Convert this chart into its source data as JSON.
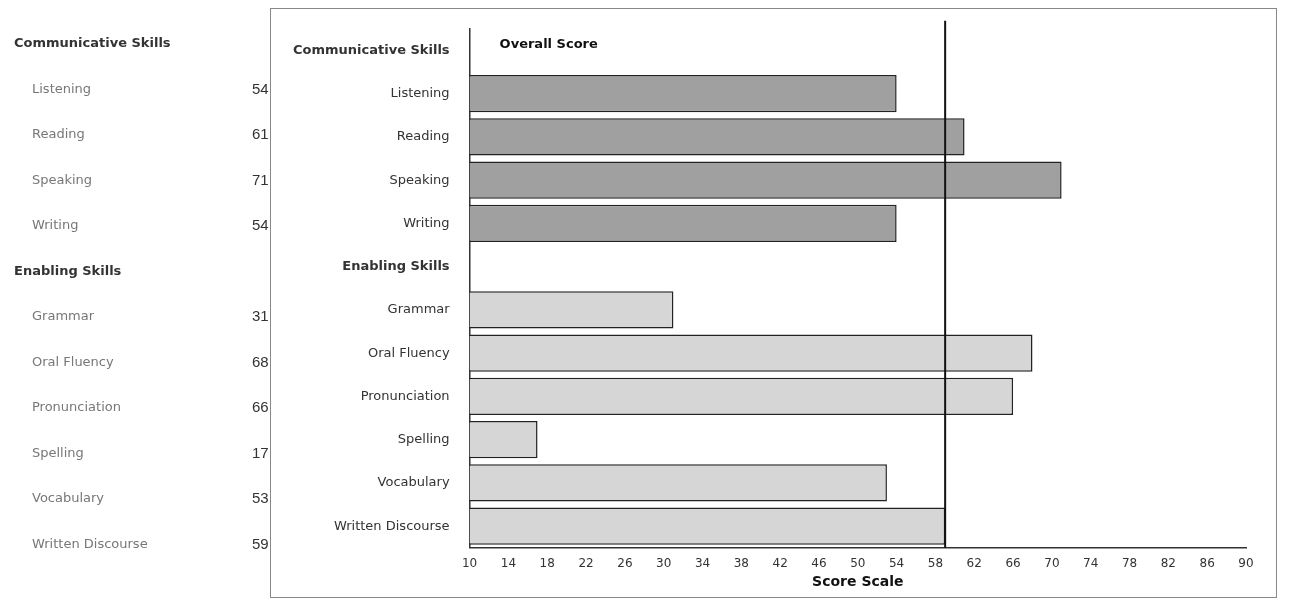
{
  "chart_data": {
    "type": "bar",
    "orientation": "horizontal",
    "xlabel": "Score Scale",
    "categories": [
      "Communicative Skills",
      "Listening",
      "Reading",
      "Speaking",
      "Writing",
      "Enabling Skills",
      "Grammar",
      "Oral Fluency",
      "Pronunciation",
      "Spelling",
      "Vocabulary",
      "Written Discourse"
    ],
    "values": [
      null,
      54,
      61,
      71,
      54,
      null,
      31,
      68,
      66,
      17,
      53,
      59
    ],
    "colors": [
      null,
      "#a0a0a0",
      "#a0a0a0",
      "#a0a0a0",
      "#a0a0a0",
      null,
      "#d6d6d6",
      "#d6d6d6",
      "#d6d6d6",
      "#d6d6d6",
      "#d6d6d6",
      "#d6d6d6"
    ],
    "xlim": [
      10,
      90
    ],
    "xticks": [
      10,
      14,
      18,
      22,
      26,
      30,
      34,
      38,
      42,
      46,
      50,
      54,
      58,
      62,
      66,
      70,
      74,
      78,
      82,
      86,
      90
    ],
    "ref_lines": [
      {
        "axis": "x",
        "value": 59,
        "label": "Overall Score",
        "color": "#111111"
      }
    ],
    "data_labels": true,
    "grid": false,
    "legend": false
  }
}
